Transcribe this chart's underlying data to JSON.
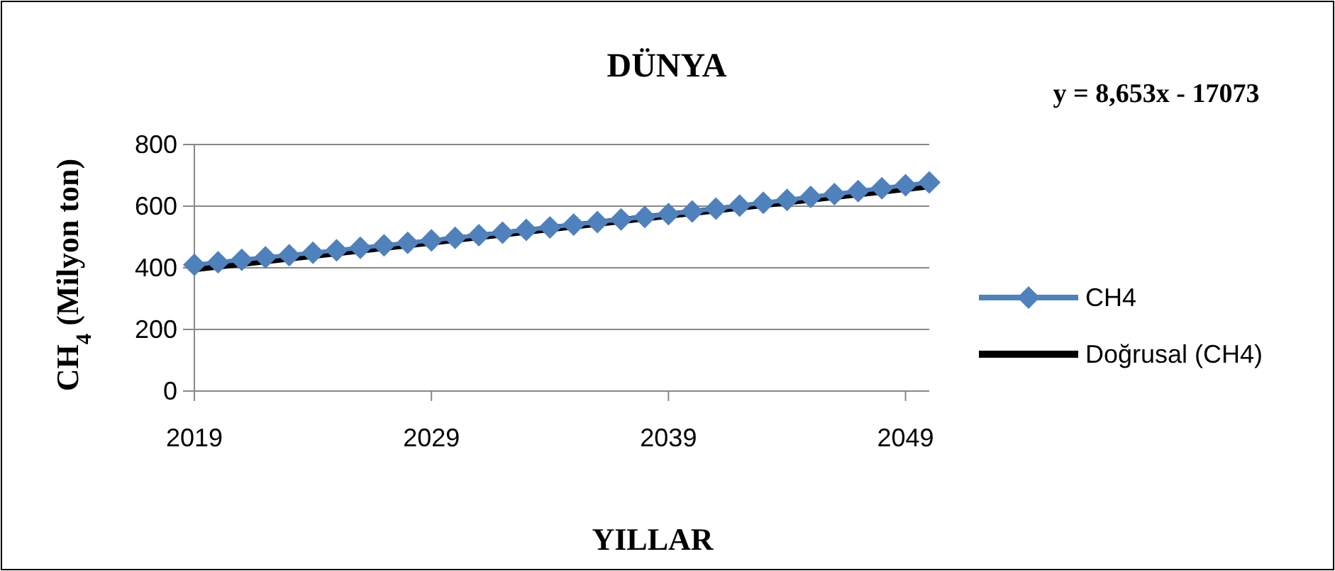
{
  "chart_data": {
    "type": "line",
    "title": "DÜNYA",
    "xlabel": "YILLAR",
    "ylabel": "CH$_{4}$ (Milyon ton)",
    "annotations": [
      "y = 8,653x - 17073"
    ],
    "x": [
      2019,
      2020,
      2021,
      2022,
      2023,
      2024,
      2025,
      2026,
      2027,
      2028,
      2029,
      2030,
      2031,
      2032,
      2033,
      2034,
      2035,
      2036,
      2037,
      2038,
      2039,
      2040,
      2041,
      2042,
      2043,
      2044,
      2045,
      2046,
      2047,
      2048,
      2049,
      2050
    ],
    "series": [
      {
        "name": "CH4",
        "color": "#4f81bd",
        "marker": "diamond",
        "values": [
          410,
          418,
          426,
          434,
          441,
          449,
          457,
          465,
          473,
          481,
          489,
          497,
          506,
          514,
          523,
          531,
          540,
          548,
          557,
          565,
          574,
          583,
          592,
          602,
          611,
          620,
          630,
          639,
          649,
          658,
          668,
          677
        ]
      },
      {
        "name": "Doğrusal (CH4)",
        "color": "#000000",
        "marker": "none",
        "x": [
          2019,
          2050
        ],
        "values": [
          397,
          666
        ]
      }
    ],
    "xlim": [
      2019,
      2050
    ],
    "xticks": [
      2019,
      2029,
      2039,
      2049
    ],
    "ylim": [
      0,
      800
    ],
    "yticks": [
      0,
      200,
      400,
      600,
      800
    ],
    "grid": "y",
    "legend": "right"
  }
}
